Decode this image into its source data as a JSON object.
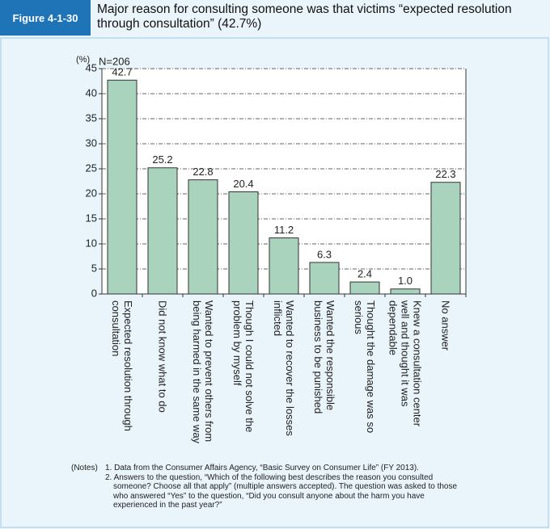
{
  "header": {
    "figure_label": "Figure 4-1-30",
    "title": "Major reason for consulting someone was that victims “expected resolution\nthrough consultation” (42.7%)"
  },
  "chart_data": {
    "type": "bar",
    "y_label": "(%)",
    "annotation": "N=206",
    "categories": [
      "Expected resolution through\nconsultation",
      "Did not know what to do",
      "Wanted to prevent others from\nbeing harmed in the same way",
      "Though I could not solve the\nproblem by myself",
      "Wanted to recover the losses\ninflicted",
      "Wanted the responsible\nbusiness to be punished",
      "Thought the damage was so\nserious",
      "Knew a consultation center\nwell and thought it was\ndependable",
      "No answer"
    ],
    "values": [
      42.7,
      25.2,
      22.8,
      20.4,
      11.2,
      6.3,
      2.4,
      1.0,
      22.3
    ],
    "value_labels": [
      "42.7",
      "25.2",
      "22.8",
      "20.4",
      "11.2",
      "6.3",
      "2.4",
      "1.0",
      "22.3"
    ],
    "color": "#a9d3bd",
    "ylim": [
      0,
      45
    ],
    "yticks": [
      0,
      5,
      10,
      15,
      20,
      25,
      30,
      35,
      40,
      45
    ],
    "grid": true
  },
  "notes": {
    "label": "(Notes)",
    "items": [
      "1. Data from the Consumer Affairs Agency, “Basic Survey on Consumer Life” (FY 2013).",
      "2. Answers to the question, “Which of the following best describes the reason you consulted someone? Choose all that apply” (multiple answers accepted). The question was asked to those who answered “Yes” to the question, “Did you consult anyone about the harm you have experienced in the past year?”"
    ]
  }
}
